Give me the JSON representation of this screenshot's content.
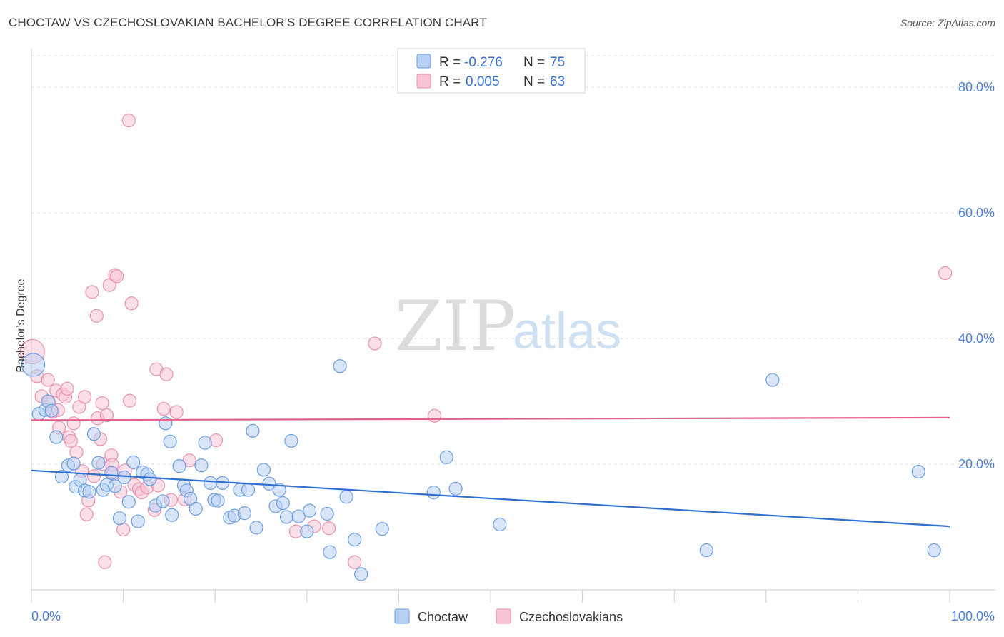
{
  "title": "CHOCTAW VS CZECHOSLOVAKIAN BACHELOR'S DEGREE CORRELATION CHART",
  "source": "Source: ZipAtlas.com",
  "watermark": {
    "zip": "ZIP",
    "atlas": "atlas"
  },
  "colors": {
    "choctaw_fill": "#b8d0f3",
    "choctaw_stroke": "#6b9ee0",
    "choctaw_line": "#2f6fd1",
    "czech_fill": "#f8c4d6",
    "czech_stroke": "#e891b0",
    "czech_line": "#e0628a",
    "grid": "#dddddd",
    "tick_text": "#4a7fd4"
  },
  "legend": {
    "rows": [
      {
        "r_label": "R = ",
        "r_value": "-0.276",
        "n_label": "N = ",
        "n_value": "75"
      },
      {
        "r_label": "R = ",
        "r_value": "0.005",
        "n_label": "N = ",
        "n_value": "63"
      }
    ]
  },
  "chart_data": {
    "type": "scatter",
    "title": "CHOCTAW VS CZECHOSLOVAKIAN BACHELOR'S DEGREE CORRELATION CHART",
    "xlabel": "",
    "ylabel": "Bachelor's Degree",
    "xlim": [
      0,
      100
    ],
    "ylim": [
      0,
      85
    ],
    "x_tick_labels": [
      "0.0%",
      "100.0%"
    ],
    "y_ticks": [
      20,
      40,
      60,
      80
    ],
    "y_tick_labels": [
      "20.0%",
      "40.0%",
      "60.0%",
      "80.0%"
    ],
    "legend_position": "top-center",
    "series": [
      {
        "name": "Choctaw",
        "R": -0.276,
        "N": 75,
        "trend": {
          "x": [
            0,
            100
          ],
          "y": [
            19.0,
            10.1
          ]
        },
        "points": [
          [
            0.2,
            35.8,
            16
          ],
          [
            0.8,
            28.0,
            9
          ],
          [
            1.5,
            28.6,
            9
          ],
          [
            1.8,
            30.0,
            9
          ],
          [
            2.2,
            28.5,
            9
          ],
          [
            2.7,
            24.3,
            9
          ],
          [
            3.3,
            18.0,
            9
          ],
          [
            4.0,
            19.8,
            9
          ],
          [
            4.6,
            20.1,
            9
          ],
          [
            4.8,
            16.4,
            9
          ],
          [
            5.3,
            17.5,
            9
          ],
          [
            5.8,
            15.8,
            9
          ],
          [
            6.3,
            15.6,
            9
          ],
          [
            6.8,
            24.8,
            9
          ],
          [
            7.3,
            20.2,
            9
          ],
          [
            7.8,
            15.9,
            9
          ],
          [
            8.2,
            16.7,
            9
          ],
          [
            8.7,
            18.6,
            9
          ],
          [
            9.1,
            16.5,
            9
          ],
          [
            9.6,
            11.4,
            9
          ],
          [
            10.1,
            17.9,
            9
          ],
          [
            10.6,
            14.0,
            9
          ],
          [
            11.1,
            20.3,
            9
          ],
          [
            11.6,
            10.9,
            9
          ],
          [
            12.1,
            18.7,
            9
          ],
          [
            12.6,
            18.4,
            9
          ],
          [
            12.9,
            17.6,
            9
          ],
          [
            13.5,
            13.4,
            9
          ],
          [
            14.3,
            14.1,
            9
          ],
          [
            14.6,
            26.5,
            9
          ],
          [
            15.1,
            23.6,
            9
          ],
          [
            15.3,
            11.9,
            9
          ],
          [
            16.1,
            19.7,
            9
          ],
          [
            16.6,
            16.6,
            9
          ],
          [
            16.9,
            15.8,
            9
          ],
          [
            17.3,
            14.5,
            9
          ],
          [
            17.9,
            12.9,
            9
          ],
          [
            18.5,
            19.8,
            9
          ],
          [
            18.9,
            23.4,
            9
          ],
          [
            19.5,
            17.0,
            9
          ],
          [
            19.9,
            14.3,
            9
          ],
          [
            20.3,
            14.2,
            9
          ],
          [
            20.8,
            17.0,
            9
          ],
          [
            21.6,
            11.5,
            9
          ],
          [
            22.1,
            11.8,
            9
          ],
          [
            22.7,
            15.9,
            9
          ],
          [
            23.2,
            12.2,
            9
          ],
          [
            23.6,
            15.9,
            9
          ],
          [
            24.1,
            25.3,
            9
          ],
          [
            24.5,
            9.9,
            9
          ],
          [
            25.3,
            19.1,
            9
          ],
          [
            25.9,
            16.9,
            9
          ],
          [
            26.6,
            13.3,
            9
          ],
          [
            27.0,
            15.9,
            9
          ],
          [
            27.4,
            13.8,
            9
          ],
          [
            27.8,
            11.6,
            9
          ],
          [
            28.3,
            23.7,
            9
          ],
          [
            29.1,
            11.7,
            9
          ],
          [
            30.0,
            9.3,
            9
          ],
          [
            30.3,
            12.6,
            9
          ],
          [
            32.2,
            12.1,
            9
          ],
          [
            32.5,
            6.0,
            9
          ],
          [
            33.6,
            35.6,
            9
          ],
          [
            34.3,
            14.8,
            9
          ],
          [
            35.2,
            8.0,
            9
          ],
          [
            35.9,
            2.5,
            9
          ],
          [
            38.2,
            9.7,
            9
          ],
          [
            43.8,
            15.5,
            9
          ],
          [
            45.2,
            21.1,
            9
          ],
          [
            46.2,
            16.1,
            9
          ],
          [
            51.0,
            10.4,
            9
          ],
          [
            73.5,
            6.3,
            9
          ],
          [
            80.7,
            33.4,
            9
          ],
          [
            96.6,
            18.8,
            9
          ],
          [
            98.3,
            6.3,
            9
          ]
        ]
      },
      {
        "name": "Czechoslovakians",
        "R": 0.005,
        "N": 63,
        "trend": {
          "x": [
            0,
            100
          ],
          "y": [
            27.0,
            27.4
          ]
        },
        "points": [
          [
            0.1,
            37.9,
            17
          ],
          [
            0.6,
            34.0,
            9
          ],
          [
            1.1,
            30.8,
            9
          ],
          [
            1.8,
            33.4,
            9
          ],
          [
            1.9,
            29.9,
            9
          ],
          [
            2.3,
            28.3,
            9
          ],
          [
            2.7,
            31.7,
            9
          ],
          [
            2.9,
            28.6,
            9
          ],
          [
            3.0,
            25.8,
            9
          ],
          [
            3.4,
            31.1,
            9
          ],
          [
            3.7,
            30.7,
            9
          ],
          [
            3.9,
            32.0,
            9
          ],
          [
            4.1,
            24.3,
            9
          ],
          [
            4.3,
            23.7,
            9
          ],
          [
            4.6,
            26.5,
            9
          ],
          [
            4.9,
            21.9,
            9
          ],
          [
            5.2,
            29.1,
            9
          ],
          [
            5.5,
            18.9,
            9
          ],
          [
            5.8,
            30.7,
            9
          ],
          [
            6.0,
            12.0,
            9
          ],
          [
            6.2,
            14.2,
            9
          ],
          [
            6.6,
            47.4,
            9
          ],
          [
            6.8,
            18.1,
            9
          ],
          [
            7.1,
            43.6,
            9
          ],
          [
            7.2,
            27.3,
            9
          ],
          [
            7.5,
            24.0,
            9
          ],
          [
            7.7,
            29.7,
            9
          ],
          [
            7.8,
            20.0,
            9
          ],
          [
            8.0,
            4.4,
            9
          ],
          [
            8.2,
            27.8,
            9
          ],
          [
            8.5,
            48.5,
            9
          ],
          [
            8.7,
            21.4,
            9
          ],
          [
            8.8,
            19.9,
            9
          ],
          [
            8.9,
            18.5,
            9
          ],
          [
            9.1,
            50.1,
            9
          ],
          [
            9.3,
            49.9,
            9
          ],
          [
            9.7,
            15.6,
            9
          ],
          [
            10.0,
            9.6,
            9
          ],
          [
            10.2,
            19.0,
            9
          ],
          [
            10.6,
            74.7,
            9
          ],
          [
            10.7,
            30.1,
            9
          ],
          [
            10.9,
            45.6,
            9
          ],
          [
            11.2,
            16.7,
            9
          ],
          [
            11.7,
            16.0,
            9
          ],
          [
            12.0,
            15.5,
            9
          ],
          [
            12.6,
            16.3,
            9
          ],
          [
            13.4,
            12.7,
            9
          ],
          [
            13.6,
            35.1,
            9
          ],
          [
            13.8,
            16.6,
            9
          ],
          [
            14.4,
            28.8,
            9
          ],
          [
            14.7,
            34.3,
            9
          ],
          [
            15.2,
            14.3,
            9
          ],
          [
            15.8,
            28.3,
            9
          ],
          [
            16.7,
            14.4,
            9
          ],
          [
            17.2,
            20.6,
            9
          ],
          [
            20.1,
            23.8,
            9
          ],
          [
            28.8,
            9.3,
            9
          ],
          [
            30.8,
            10.1,
            9
          ],
          [
            32.4,
            9.8,
            9
          ],
          [
            35.2,
            4.4,
            9
          ],
          [
            37.4,
            39.2,
            9
          ],
          [
            43.9,
            27.7,
            9
          ],
          [
            99.5,
            50.4,
            9
          ]
        ]
      }
    ]
  }
}
